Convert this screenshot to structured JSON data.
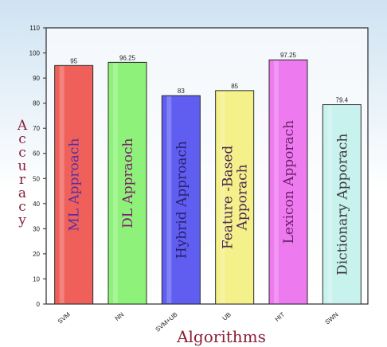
{
  "chart_data": {
    "type": "bar",
    "categories": [
      "SVM",
      "NN",
      "SVM+UB",
      "UB",
      "HIT",
      "SWN"
    ],
    "values": [
      95,
      96.25,
      83,
      85,
      97.25,
      79.4
    ],
    "value_labels": [
      "95",
      "96.25",
      "83",
      "85",
      "97.25",
      "79.4"
    ],
    "bar_labels": [
      [
        "ML Approach"
      ],
      [
        "DL Appraoch"
      ],
      [
        "Hybrid Approach"
      ],
      [
        "Feature -Based",
        "Apporach"
      ],
      [
        "Lexicon Apporach"
      ],
      [
        "Dictionary Apporach"
      ]
    ],
    "ylim": [
      0,
      110
    ],
    "yticks": [
      "0",
      "10",
      "20",
      "30",
      "40",
      "50",
      "60",
      "70",
      "80",
      "90",
      "100",
      "110"
    ],
    "xlabel": "Algorithms",
    "ylabel": "Accuracy",
    "grid": false,
    "colors": {
      "bars": [
        "#f0605a",
        "#8ef27a",
        "#5f5ef0",
        "#f4f08a",
        "#ee7af0",
        "#c8f2ee"
      ],
      "bar_labels": [
        "#5a2ea0",
        "#7a1f6a",
        "#2a1f70",
        "#4a2a50",
        "#6a1f6a",
        "#3a3a3a"
      ],
      "plot_bg_top": "#f4f8fc",
      "plot_bg_bottom": "#ffffff",
      "page_bg_top": "#cfe3f2",
      "page_bg_bottom": "#ffffff"
    }
  }
}
